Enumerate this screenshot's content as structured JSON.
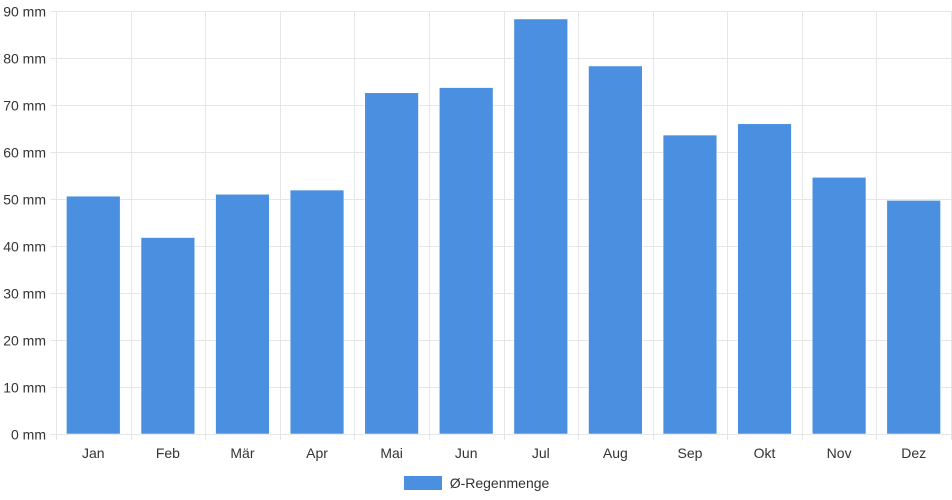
{
  "chart_data": {
    "type": "bar",
    "categories": [
      "Jan",
      "Feb",
      "Mär",
      "Apr",
      "Mai",
      "Jun",
      "Jul",
      "Aug",
      "Sep",
      "Okt",
      "Nov",
      "Dez"
    ],
    "series": [
      {
        "name": "Ø-Regenmenge",
        "values": [
          50.6,
          41.8,
          51.0,
          51.9,
          72.6,
          73.7,
          88.3,
          78.3,
          63.6,
          66.0,
          54.6,
          49.7
        ],
        "color": "#4a8fe0"
      }
    ],
    "y_ticks": [
      "0 mm",
      "10 mm",
      "20 mm",
      "30 mm",
      "40 mm",
      "50 mm",
      "60 mm",
      "70 mm",
      "80 mm",
      "90 mm"
    ],
    "ylim": [
      0,
      90
    ],
    "y_unit": "mm",
    "grid": true,
    "legend_position": "bottom-center",
    "colors": {
      "bar": "#4a8fe0",
      "grid": "#e6e6e6",
      "text": "#333333"
    }
  }
}
